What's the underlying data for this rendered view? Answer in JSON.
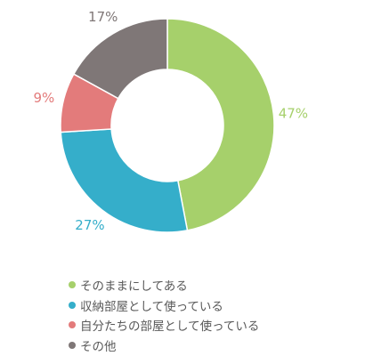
{
  "chart_data": {
    "type": "pie",
    "variant": "donut",
    "categories": [
      "そのままにしてある",
      "収納部屋として使っている",
      "自分たちの部屋として使っている",
      "その他"
    ],
    "values": [
      47,
      27,
      9,
      17
    ],
    "value_labels": [
      "47%",
      "27%",
      "9%",
      "17%"
    ],
    "unit": "%",
    "colors": [
      "#a6d06b",
      "#35aeca",
      "#e37b7b",
      "#7f7777"
    ],
    "legend_position": "bottom-left",
    "title": ""
  }
}
